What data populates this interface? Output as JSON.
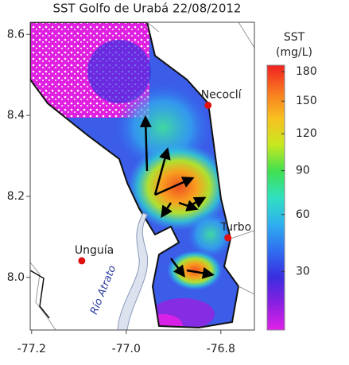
{
  "map": {
    "title": "SST Golfo de Urabá 22/08/2012",
    "xlim": [
      -77.203,
      -76.729
    ],
    "ylim": [
      7.87,
      8.63
    ],
    "xticks": [
      -77.2,
      {
        "value": -77,
        "label": "-77.0"
      },
      -76.8
    ],
    "yticks": [
      {
        "value": 8,
        "label": "8.0"
      },
      8.2,
      8.4,
      8.6
    ],
    "colorbar": {
      "label": [
        "SST",
        "(mg/L)"
      ],
      "scale": "sqrt",
      "clim": [
        10,
        187
      ],
      "ticks": [
        30,
        60,
        90,
        120,
        150,
        180
      ],
      "colormap": [
        "#e020e8",
        "#8a20e0",
        "#3a2ee0",
        "#2f6ef0",
        "#2fb0f0",
        "#30e0c0",
        "#40e050",
        "#c8e820",
        "#f8c020",
        "#f87820",
        "#f02020"
      ]
    },
    "places": [
      {
        "name": "Necoclí",
        "lon": -76.827,
        "lat": 8.425,
        "color": "#e01010"
      },
      {
        "name": "Turbo",
        "lon": -76.785,
        "lat": 8.098,
        "color": "#e01010"
      },
      {
        "name": "Unguía",
        "lon": -77.094,
        "lat": 8.041,
        "color": "#e01010"
      }
    ],
    "river_label": "Río Atrato"
  }
}
